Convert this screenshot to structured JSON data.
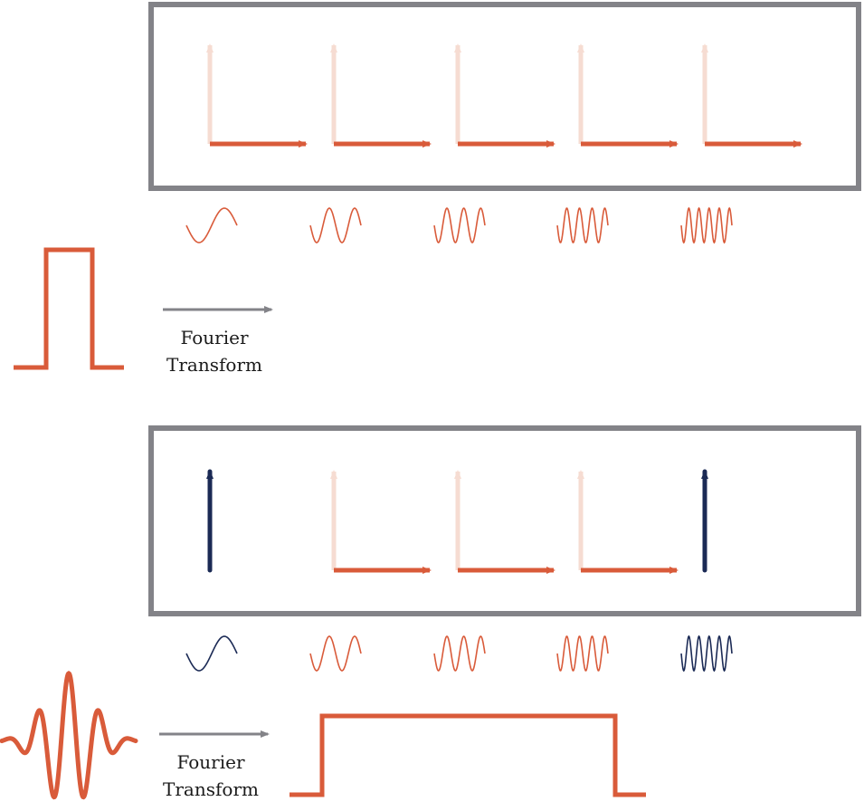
{
  "colors": {
    "orange": "#d95b3a",
    "faded": "#f6dcd2",
    "navy": "#1b2a55",
    "gray": "#838388"
  },
  "top": {
    "units": [
      {
        "state": "rotated",
        "wave": {
          "cycles": 1
        }
      },
      {
        "state": "rotated",
        "wave": {
          "cycles": 2
        }
      },
      {
        "state": "rotated",
        "wave": {
          "cycles": 3
        }
      },
      {
        "state": "rotated",
        "wave": {
          "cycles": 4
        }
      },
      {
        "state": "rotated",
        "wave": {
          "cycles": 5
        }
      }
    ],
    "caption": {
      "line1": "Fourier",
      "line2": "Transform"
    }
  },
  "bottom": {
    "units": [
      {
        "state": "vertical",
        "wave": {
          "cycles": 1
        }
      },
      {
        "state": "rotated",
        "wave": {
          "cycles": 2
        }
      },
      {
        "state": "rotated",
        "wave": {
          "cycles": 3
        }
      },
      {
        "state": "rotated",
        "wave": {
          "cycles": 4
        }
      },
      {
        "state": "vertical",
        "wave": {
          "cycles": 5
        }
      }
    ],
    "caption": {
      "line1": "Fourier",
      "line2": "Transform"
    }
  },
  "icons": {
    "top_pulse": "square-pulse-icon",
    "bottom_wavelet": "wavelet-icon",
    "arrow": "transform-arrow-icon"
  }
}
